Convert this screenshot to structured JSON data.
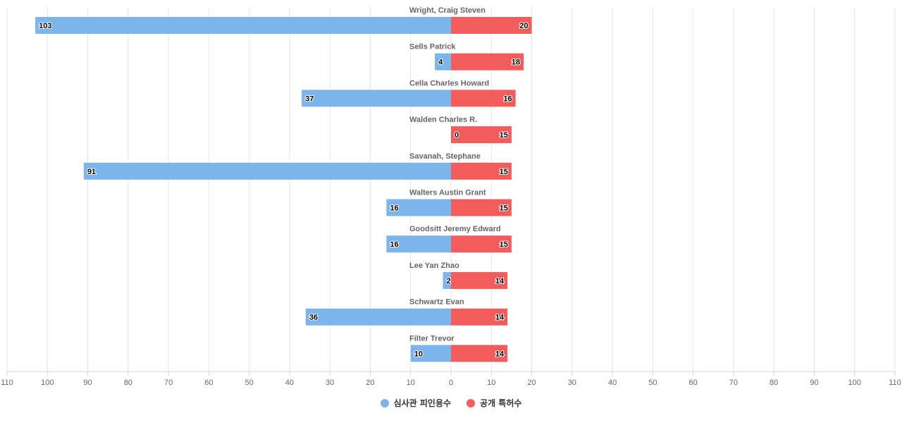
{
  "chart_data": {
    "type": "bar",
    "orientation": "horizontal-diverging",
    "title": "",
    "xlabel": "",
    "ylabel": "",
    "xlim": [
      -110,
      110
    ],
    "x_ticks": [
      "110",
      "100",
      "90",
      "80",
      "70",
      "60",
      "50",
      "40",
      "30",
      "20",
      "10",
      "0",
      "10",
      "20",
      "30",
      "40",
      "50",
      "60",
      "70",
      "80",
      "90",
      "100",
      "110"
    ],
    "grid": true,
    "legend_position": "bottom",
    "categories": [
      "Wright, Craig Steven",
      "Sells Patrick",
      "Cella Charles Howard",
      "Walden Charles R.",
      "Savanah, Stephane",
      "Walters Austin Grant",
      "Goodsitt Jeremy Edward",
      "Lee Yan Zhao",
      "Schwartz Evan",
      "Filter Trevor"
    ],
    "series": [
      {
        "name": "심사관 피인용수",
        "side": "left",
        "color": "#7cb5ec",
        "values": [
          103,
          4,
          37,
          0,
          91,
          16,
          16,
          2,
          36,
          10
        ]
      },
      {
        "name": "공개 특허수",
        "side": "right",
        "color": "#f45b5b",
        "values": [
          20,
          18,
          16,
          15,
          15,
          15,
          15,
          14,
          14,
          14
        ]
      }
    ]
  }
}
